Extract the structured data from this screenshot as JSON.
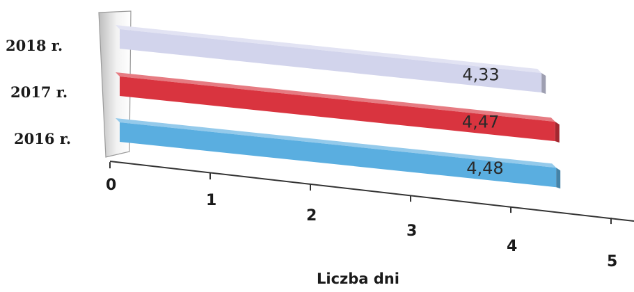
{
  "chart_data": {
    "type": "bar",
    "orientation": "horizontal",
    "style": "3d",
    "categories": [
      "2016 r.",
      "2017 r.",
      "2018 r."
    ],
    "values": [
      4.48,
      4.47,
      4.33
    ],
    "value_labels": [
      "4,48",
      "4,47",
      "4,33"
    ],
    "bar_colors": [
      "#5aaee0",
      "#d9343f",
      "#d2d4ec"
    ],
    "xlabel": "Liczba dni",
    "ylabel": "",
    "xlim": [
      0,
      5
    ],
    "xticks": [
      "0",
      "1",
      "2",
      "3",
      "4",
      "5"
    ],
    "grid": false,
    "legend": "none"
  }
}
